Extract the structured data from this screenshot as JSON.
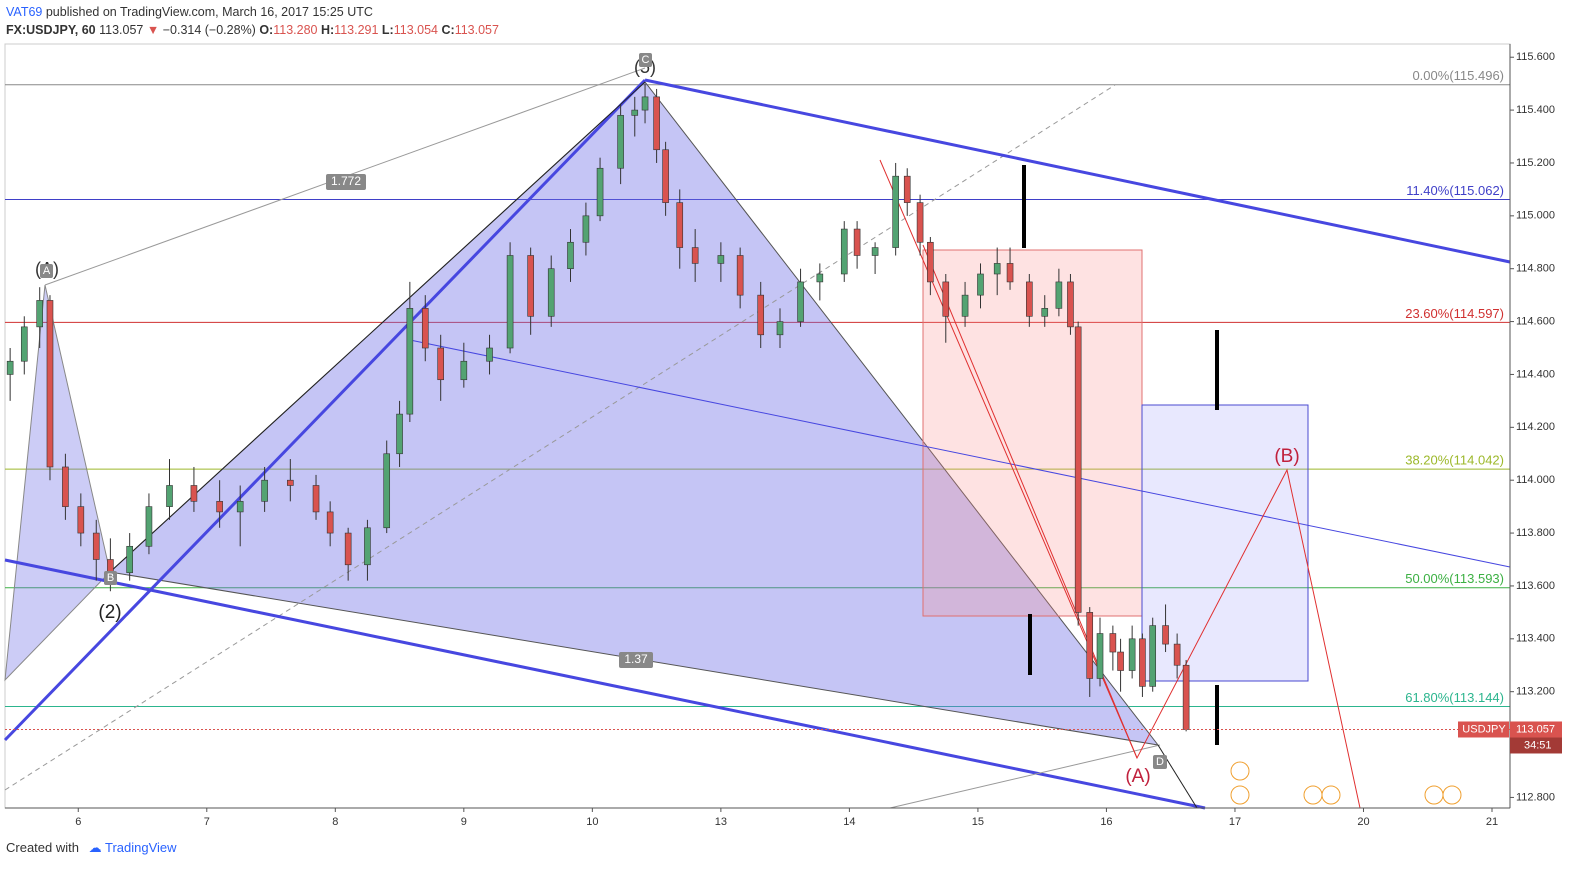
{
  "header": {
    "author": "VAT69",
    "published": "published on TradingView.com, March 16, 2017 15:25 UTC",
    "symbol": "FX:USDJPY, 60",
    "last": "113.057",
    "change": "−0.314 (−0.28%)",
    "ohlc": [
      {
        "label": "O:",
        "value": "113.280"
      },
      {
        "label": "H:",
        "value": "113.291"
      },
      {
        "label": "L:",
        "value": "113.054"
      },
      {
        "label": "C:",
        "value": "113.057"
      }
    ]
  },
  "chart_data": {
    "type": "candlestick",
    "x": [
      -0.53,
      -0.42,
      -0.3,
      -0.22,
      -0.1,
      0.02,
      0.14,
      0.25,
      0.4,
      0.55,
      0.71,
      0.9,
      1.1,
      1.26,
      1.45,
      1.65,
      1.85,
      1.96,
      2.1,
      2.25,
      2.4,
      2.5,
      2.58,
      2.7,
      2.82,
      3.0,
      3.2,
      3.36,
      3.52,
      3.68,
      3.83,
      3.95,
      4.06,
      4.22,
      4.33,
      4.41,
      4.5,
      4.57,
      4.68,
      4.8,
      5.0,
      5.15,
      5.31,
      5.46,
      5.62,
      5.77,
      5.96,
      6.06,
      6.2,
      6.36,
      6.45,
      6.55,
      6.63,
      6.75,
      6.9,
      7.02,
      7.15,
      7.25,
      7.4,
      7.52,
      7.63,
      7.72,
      7.78,
      7.87,
      7.95,
      8.05,
      8.11,
      8.2,
      8.28,
      8.36,
      8.46,
      8.55,
      8.62
    ],
    "open": [
      114.4,
      114.45,
      114.58,
      114.68,
      114.05,
      113.9,
      113.8,
      113.7,
      113.65,
      113.75,
      113.9,
      113.98,
      113.92,
      113.88,
      113.92,
      114.0,
      113.98,
      113.88,
      113.8,
      113.68,
      113.82,
      114.1,
      114.25,
      114.65,
      114.5,
      114.38,
      114.45,
      114.5,
      114.85,
      114.62,
      114.8,
      114.9,
      115.0,
      115.18,
      115.38,
      115.4,
      115.45,
      115.25,
      115.05,
      114.88,
      114.82,
      114.85,
      114.7,
      114.55,
      114.6,
      114.75,
      114.78,
      114.95,
      114.85,
      114.88,
      115.15,
      115.05,
      114.9,
      114.75,
      114.62,
      114.7,
      114.78,
      114.82,
      114.75,
      114.62,
      114.65,
      114.75,
      114.58,
      113.5,
      113.25,
      113.42,
      113.35,
      113.28,
      113.4,
      113.22,
      113.45,
      113.38,
      113.3
    ],
    "high": [
      114.5,
      114.62,
      114.73,
      114.7,
      114.1,
      113.95,
      113.85,
      113.78,
      113.8,
      113.95,
      114.08,
      114.05,
      114.0,
      113.98,
      114.05,
      114.08,
      114.02,
      113.92,
      113.82,
      113.85,
      114.15,
      114.3,
      114.75,
      114.7,
      114.55,
      114.52,
      114.55,
      114.9,
      114.88,
      114.85,
      114.95,
      115.05,
      115.22,
      115.42,
      115.45,
      115.5,
      115.48,
      115.28,
      115.1,
      114.95,
      114.9,
      114.88,
      114.75,
      114.65,
      114.8,
      114.82,
      114.98,
      114.98,
      114.9,
      115.2,
      115.18,
      115.08,
      114.92,
      114.78,
      114.75,
      114.82,
      114.88,
      114.88,
      114.78,
      114.7,
      114.8,
      114.78,
      114.6,
      113.52,
      113.48,
      113.45,
      113.4,
      113.45,
      113.42,
      113.48,
      113.53,
      113.42,
      113.32
    ],
    "low": [
      114.3,
      114.4,
      114.5,
      114.0,
      113.85,
      113.75,
      113.62,
      113.58,
      113.62,
      113.72,
      113.85,
      113.88,
      113.82,
      113.75,
      113.88,
      113.92,
      113.85,
      113.75,
      113.62,
      113.62,
      113.8,
      114.05,
      114.22,
      114.45,
      114.3,
      114.35,
      114.4,
      114.48,
      114.55,
      114.58,
      114.75,
      114.85,
      114.98,
      115.12,
      115.3,
      115.35,
      115.2,
      115.0,
      114.8,
      114.75,
      114.75,
      114.65,
      114.5,
      114.5,
      114.58,
      114.68,
      114.75,
      114.8,
      114.78,
      114.85,
      115.0,
      114.85,
      114.7,
      114.52,
      114.58,
      114.65,
      114.7,
      114.72,
      114.58,
      114.58,
      114.62,
      114.55,
      113.45,
      113.18,
      113.22,
      113.28,
      113.2,
      113.25,
      113.18,
      113.2,
      113.35,
      113.25,
      113.05
    ],
    "close": [
      114.45,
      114.58,
      114.68,
      114.05,
      113.9,
      113.8,
      113.7,
      113.65,
      113.75,
      113.9,
      113.98,
      113.92,
      113.88,
      113.92,
      114.0,
      113.98,
      113.88,
      113.8,
      113.68,
      113.82,
      114.1,
      114.25,
      114.65,
      114.5,
      114.38,
      114.45,
      114.5,
      114.85,
      114.62,
      114.8,
      114.9,
      115.0,
      115.18,
      115.38,
      115.4,
      115.45,
      115.25,
      115.05,
      114.88,
      114.82,
      114.85,
      114.7,
      114.55,
      114.6,
      114.75,
      114.78,
      114.95,
      114.85,
      114.88,
      115.15,
      115.05,
      114.9,
      114.75,
      114.62,
      114.7,
      114.78,
      114.82,
      114.75,
      114.62,
      114.65,
      114.75,
      114.58,
      113.5,
      113.25,
      113.42,
      113.35,
      113.28,
      113.4,
      113.22,
      113.45,
      113.38,
      113.3,
      113.057
    ],
    "up_color": "#53a372",
    "down_color": "#d9534f",
    "xlim": [
      -0.57,
      11.14
    ],
    "xticks": [
      {
        "value": 0,
        "label": "6"
      },
      {
        "value": 1,
        "label": "7"
      },
      {
        "value": 2,
        "label": "8"
      },
      {
        "value": 3,
        "label": "9"
      },
      {
        "value": 4,
        "label": "10"
      },
      {
        "value": 5,
        "label": "13"
      },
      {
        "value": 6,
        "label": "14"
      },
      {
        "value": 7,
        "label": "15"
      },
      {
        "value": 8,
        "label": "16"
      },
      {
        "value": 9,
        "label": "17"
      },
      {
        "value": 10,
        "label": "20"
      },
      {
        "value": 11,
        "label": "21"
      }
    ],
    "ylim": [
      112.76,
      115.65
    ],
    "yticks": [
      {
        "value": 112.8,
        "label": "112.800"
      },
      {
        "value": 113,
        "label": "113.000"
      },
      {
        "value": 113.2,
        "label": "113.200"
      },
      {
        "value": 113.4,
        "label": "113.400"
      },
      {
        "value": 113.6,
        "label": "113.600"
      },
      {
        "value": 113.8,
        "label": "113.800"
      },
      {
        "value": 114,
        "label": "114.000"
      },
      {
        "value": 114.2,
        "label": "114.200"
      },
      {
        "value": 114.4,
        "label": "114.400"
      },
      {
        "value": 114.6,
        "label": "114.600"
      },
      {
        "value": 114.8,
        "label": "114.800"
      },
      {
        "value": 115,
        "label": "115.000"
      },
      {
        "value": 115.2,
        "label": "115.200"
      },
      {
        "value": 115.4,
        "label": "115.400"
      },
      {
        "value": 115.6,
        "label": "115.600"
      }
    ],
    "fib_levels": [
      {
        "label": "0.00%(115.496)",
        "value": 115.496,
        "color": "#888888"
      },
      {
        "label": "11.40%(115.062)",
        "value": 115.062,
        "color": "#3f3fc8"
      },
      {
        "label": "23.60%(114.597)",
        "value": 114.597,
        "color": "#d03030"
      },
      {
        "label": "38.20%(114.042)",
        "value": 114.042,
        "color": "#9cb82a"
      },
      {
        "label": "50.00%(113.593)",
        "value": 113.593,
        "color": "#3cb043"
      },
      {
        "label": "61.80%(113.144)",
        "value": 113.144,
        "color": "#2cb58e"
      }
    ],
    "last_price": {
      "name": "USDJPY",
      "value": 113.057,
      "countdown": "34:51"
    },
    "annotations": [
      "(A)",
      "(2)",
      "(5)",
      "(A)",
      "(B)",
      "1.772",
      "1.37",
      "A",
      "B",
      "C",
      "D"
    ]
  },
  "footer": {
    "created": "Created with",
    "brand": "TradingView"
  }
}
